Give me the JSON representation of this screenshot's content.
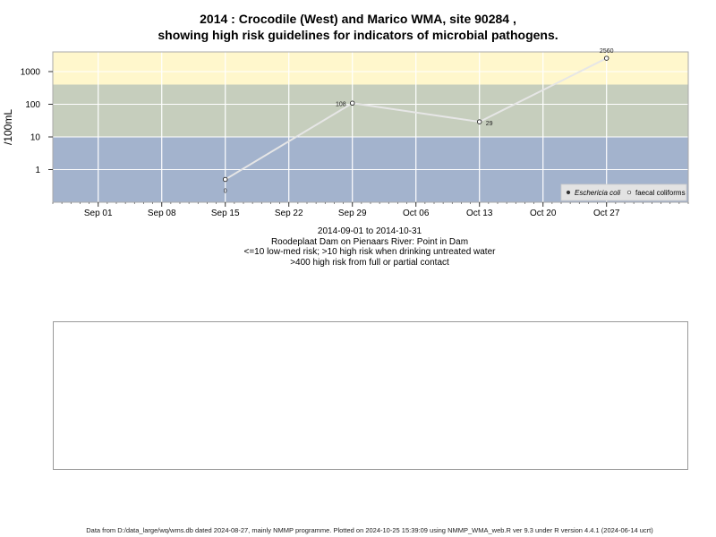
{
  "title_line1": "2014 : Crocodile (West) and Marico WMA, site 90284 ,",
  "title_line2": "showing high risk guidelines for indicators of microbial pathogens.",
  "captions": [
    "2014-09-01 to 2014-10-31",
    "Roodeplaat Dam on Pienaars River: Point in Dam",
    "<=10 low-med risk; >10 high risk when drinking untreated water",
    ">400 high risk from full or partial contact"
  ],
  "footer": "Data from D:/data_large/wq/wms.db dated 2024-08-27, mainly NMMP programme. Plotted on 2024-10-25 15:39:09 using NMMP_WMA_web.R ver 9.3 under R version 4.4.1 (2024-06-14 ucrt)",
  "colors": {
    "band_low": "#a3b3cd",
    "band_mid": "#c6cebd",
    "band_high": "#fff7cc",
    "grid": "#ffffff",
    "series_line": "#e6e6e6",
    "legend_bg": "#e3e3e3"
  },
  "chart_data": {
    "type": "line",
    "y_scale": "log",
    "ylabel": "/100mL",
    "ylim": [
      0.1,
      4000
    ],
    "yticks": [
      1,
      10,
      100,
      1000
    ],
    "ytick_labels": [
      "1",
      "10",
      "100",
      "1000"
    ],
    "xlim": [
      "2014-08-27",
      "2014-11-05"
    ],
    "xticks": [
      "2014-09-01",
      "2014-09-08",
      "2014-09-15",
      "2014-09-22",
      "2014-09-29",
      "2014-10-06",
      "2014-10-13",
      "2014-10-20",
      "2014-10-27"
    ],
    "xtick_labels": [
      "Sep 01",
      "Sep 08",
      "Sep 15",
      "Sep 22",
      "Sep 29",
      "Oct 06",
      "Oct 13",
      "Oct 20",
      "Oct 27"
    ],
    "risk_bands": [
      {
        "from": 0.1,
        "to": 10,
        "color": "#a3b3cd"
      },
      {
        "from": 10,
        "to": 400,
        "color": "#c6cebd"
      },
      {
        "from": 400,
        "to": 4000,
        "color": "#fff7cc"
      }
    ],
    "grid": true,
    "legend_position": "bottom-right",
    "legend": [
      "Eschericia coli",
      "faecal coliforms"
    ],
    "series": [
      {
        "name": "faecal coliforms",
        "x": [
          "2014-09-15",
          "2014-09-29",
          "2014-10-13",
          "2014-10-27"
        ],
        "y": [
          0.5,
          108,
          29,
          2560
        ],
        "labels": [
          "0",
          "108",
          "29",
          "2560"
        ]
      }
    ]
  }
}
